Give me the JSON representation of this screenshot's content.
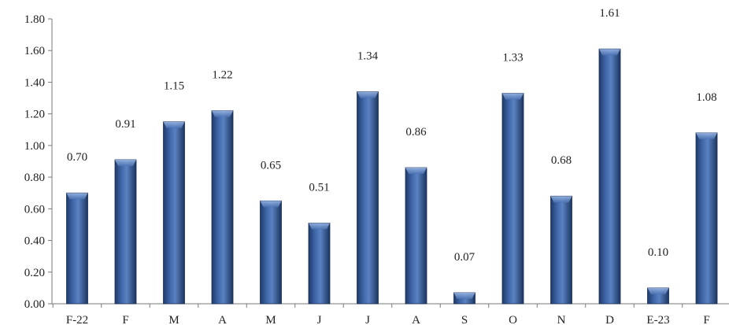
{
  "chart_data": {
    "type": "bar",
    "categories": [
      "F-22",
      "F",
      "M",
      "A",
      "M",
      "J",
      "J",
      "A",
      "S",
      "O",
      "N",
      "D",
      "E-23",
      "F"
    ],
    "values": [
      0.7,
      0.91,
      1.15,
      1.22,
      0.65,
      0.51,
      1.34,
      0.86,
      0.07,
      1.33,
      0.68,
      1.61,
      0.1,
      1.08
    ],
    "value_labels": [
      "0.70",
      "0.91",
      "1.15",
      "1.22",
      "0.65",
      "0.51",
      "1.34",
      "0.86",
      "0.07",
      "1.33",
      "0.68",
      "1.61",
      "0.10",
      "1.08"
    ],
    "yticks": [
      "0.00",
      "0.20",
      "0.40",
      "0.60",
      "0.80",
      "1.00",
      "1.20",
      "1.40",
      "1.60",
      "1.80"
    ],
    "ylim": [
      0,
      1.8
    ],
    "grid": false,
    "legend": "none",
    "title": "",
    "xlabel": "",
    "ylabel": "",
    "bar_color": "#2d4d85",
    "bar_highlight": "#7b9fd6"
  }
}
